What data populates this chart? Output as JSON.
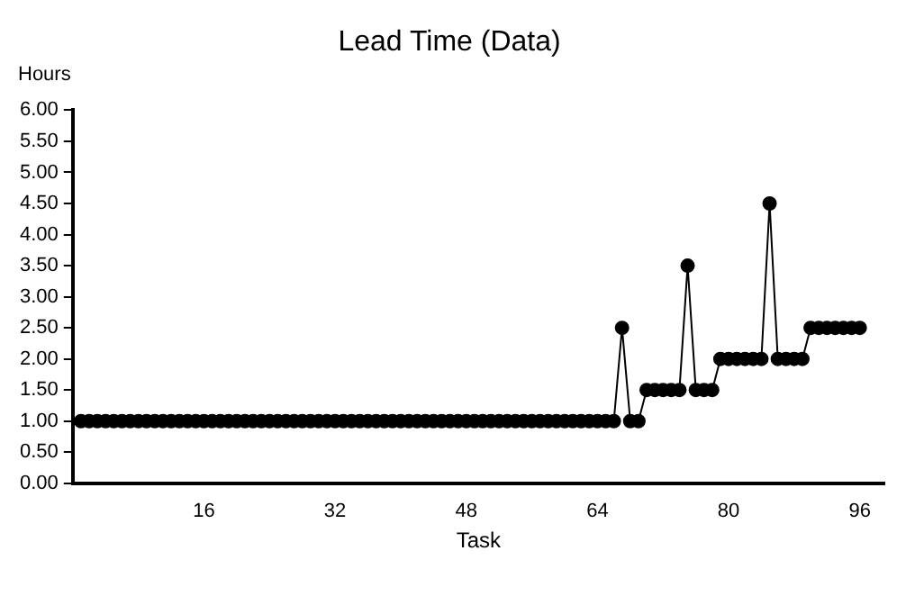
{
  "chart_data": {
    "type": "line",
    "title": "Lead Time (Data)",
    "xlabel": "Task",
    "ylabel": "Hours",
    "x": [
      1,
      2,
      3,
      4,
      5,
      6,
      7,
      8,
      9,
      10,
      11,
      12,
      13,
      14,
      15,
      16,
      17,
      18,
      19,
      20,
      21,
      22,
      23,
      24,
      25,
      26,
      27,
      28,
      29,
      30,
      31,
      32,
      33,
      34,
      35,
      36,
      37,
      38,
      39,
      40,
      41,
      42,
      43,
      44,
      45,
      46,
      47,
      48,
      49,
      50,
      51,
      52,
      53,
      54,
      55,
      56,
      57,
      58,
      59,
      60,
      61,
      62,
      63,
      64,
      65,
      66,
      67,
      68,
      69,
      70,
      71,
      72,
      73,
      74,
      75,
      76,
      77,
      78,
      79,
      80,
      81,
      82,
      83,
      84,
      85,
      86,
      87,
      88,
      89,
      90,
      91,
      92,
      93,
      94,
      95,
      96
    ],
    "series": [
      {
        "color": "#000000",
        "values": [
          1,
          1,
          1,
          1,
          1,
          1,
          1,
          1,
          1,
          1,
          1,
          1,
          1,
          1,
          1,
          1,
          1,
          1,
          1,
          1,
          1,
          1,
          1,
          1,
          1,
          1,
          1,
          1,
          1,
          1,
          1,
          1,
          1,
          1,
          1,
          1,
          1,
          1,
          1,
          1,
          1,
          1,
          1,
          1,
          1,
          1,
          1,
          1,
          1,
          1,
          1,
          1,
          1,
          1,
          1,
          1,
          1,
          1,
          1,
          1,
          1,
          1,
          1,
          1,
          1,
          1,
          2.5,
          1,
          1,
          1.5,
          1.5,
          1.5,
          1.5,
          1.5,
          3.5,
          1.5,
          1.5,
          1.5,
          2,
          2,
          2,
          2,
          2,
          2,
          4.5,
          2,
          2,
          2,
          2,
          2.5,
          2.5,
          2.5,
          2.5,
          2.5,
          2.5,
          2.5
        ]
      }
    ],
    "xlim": [
      0,
      99
    ],
    "xticks": [
      16,
      32,
      48,
      64,
      80,
      96
    ],
    "ylim": [
      0,
      6
    ],
    "yticks": [
      {
        "value": 0,
        "label": "0.00"
      },
      {
        "value": 0.5,
        "label": "0.50"
      },
      {
        "value": 1,
        "label": "1.00"
      },
      {
        "value": 1.5,
        "label": "1.50"
      },
      {
        "value": 2,
        "label": "2.00"
      },
      {
        "value": 2.5,
        "label": "2.50"
      },
      {
        "value": 3,
        "label": "3.00"
      },
      {
        "value": 3.5,
        "label": "3.50"
      },
      {
        "value": 4,
        "label": "4.00"
      },
      {
        "value": 4.5,
        "label": "4.50"
      },
      {
        "value": 5,
        "label": "5.00"
      },
      {
        "value": 5.5,
        "label": "5.50"
      },
      {
        "value": 6,
        "label": "6.00"
      }
    ],
    "marker": "circle",
    "line_style": "solid",
    "grid": false,
    "legend": false
  }
}
